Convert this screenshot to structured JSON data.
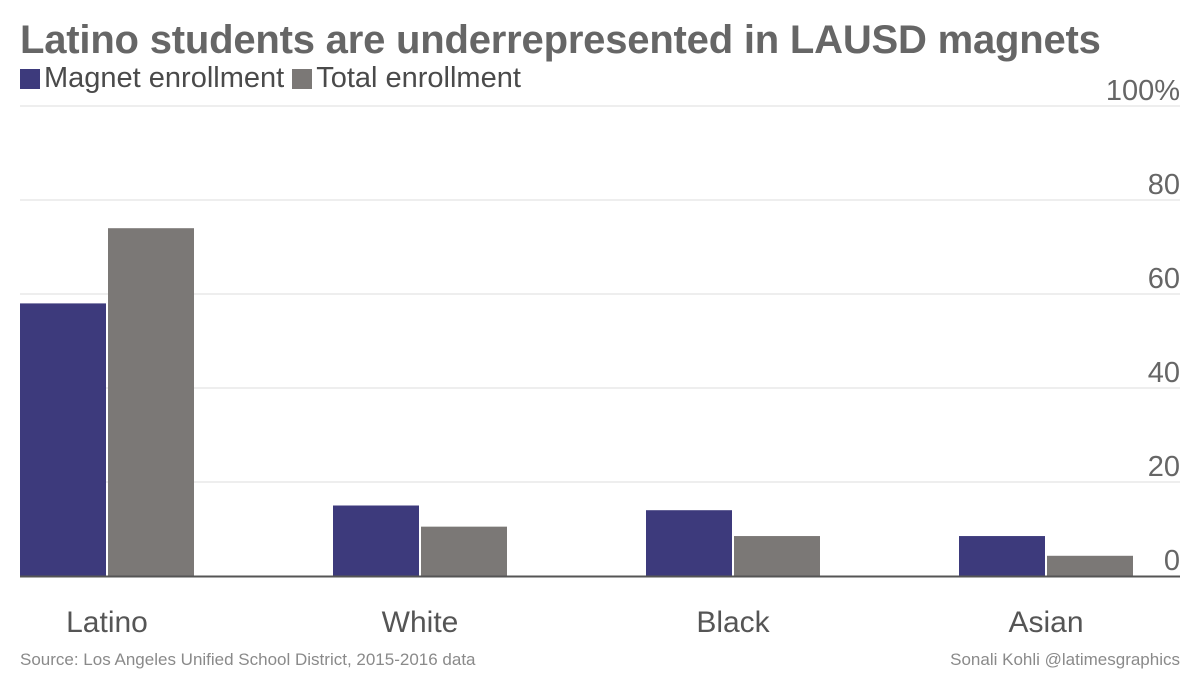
{
  "chart_data": {
    "type": "bar",
    "title": "Latino students are underrepresented in LAUSD magnets",
    "categories": [
      "Latino",
      "White",
      "Black",
      "Asian"
    ],
    "series": [
      {
        "name": "Magnet enrollment",
        "color": "#3d3a7c",
        "values": [
          58,
          15,
          14,
          8.5
        ]
      },
      {
        "name": "Total enrollment",
        "color": "#7b7876",
        "values": [
          74,
          10.5,
          8.5,
          4.3
        ]
      }
    ],
    "ylim": [
      0,
      100
    ],
    "yticks": [
      {
        "value": 100,
        "label": "100%"
      },
      {
        "value": 80,
        "label": "80"
      },
      {
        "value": 60,
        "label": "60"
      },
      {
        "value": 40,
        "label": "40"
      },
      {
        "value": 20,
        "label": "20"
      },
      {
        "value": 0,
        "label": "0"
      }
    ],
    "xlabel": "",
    "ylabel": "",
    "grid": true,
    "legend_position": "top-left"
  },
  "footer": {
    "source": "Source: Los Angeles Unified School District, 2015-2016 data",
    "credit": "Sonali Kohli @latimesgraphics"
  }
}
